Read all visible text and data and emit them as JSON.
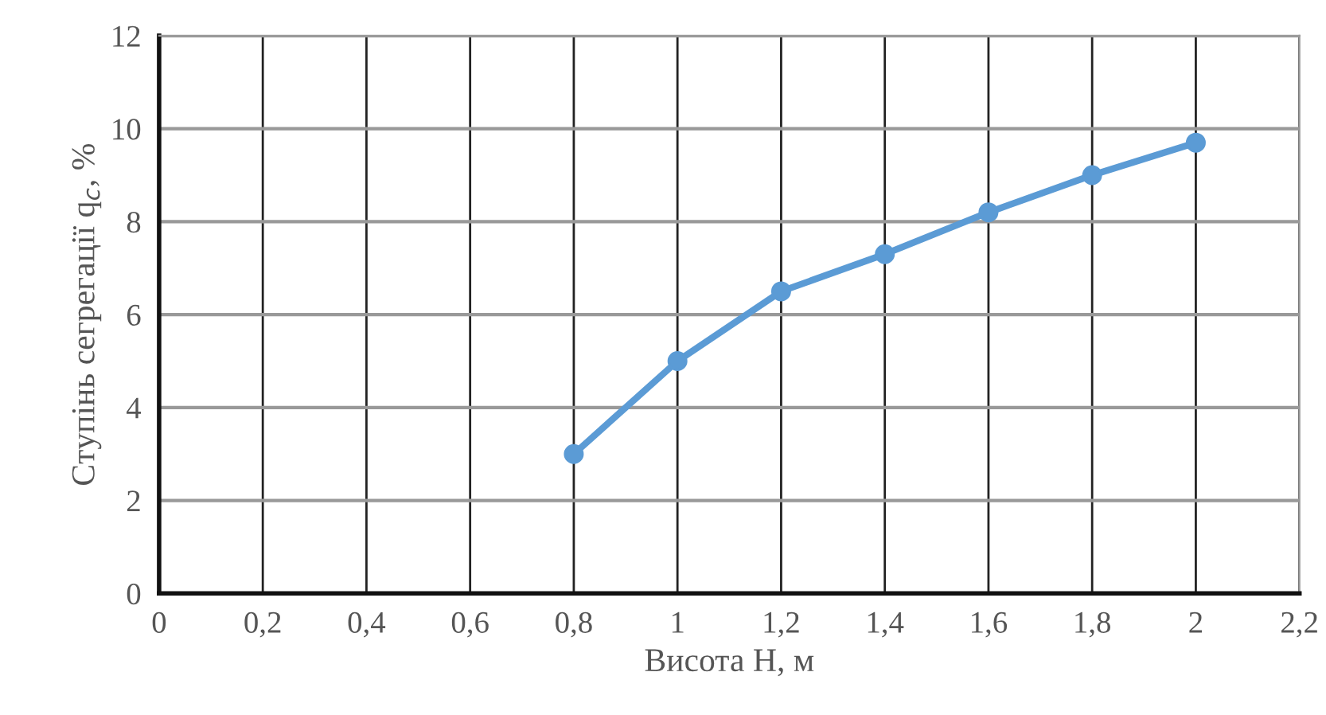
{
  "chart_data": {
    "type": "line",
    "xlabel": "Висота H, м",
    "ylabel": "Ступінь сегрегації q$_{c}$, %",
    "x": [
      0.8,
      1.0,
      1.2,
      1.4,
      1.6,
      1.8,
      2.0
    ],
    "series": [
      {
        "color": "#5b9bd5",
        "values": [
          3.0,
          5.0,
          6.5,
          7.3,
          8.2,
          9.0,
          9.7
        ]
      }
    ],
    "xlim": [
      0,
      2.2
    ],
    "xticks": [
      0,
      {
        "value": 0.2,
        "label": "0,2"
      },
      {
        "value": 0.4,
        "label": "0,4"
      },
      {
        "value": 0.6,
        "label": "0,6"
      },
      {
        "value": 0.8,
        "label": "0,8"
      },
      1,
      {
        "value": 1.2,
        "label": "1,2"
      },
      {
        "value": 1.4,
        "label": "1,4"
      },
      {
        "value": 1.6,
        "label": "1,6"
      },
      {
        "value": 1.8,
        "label": "1,8"
      },
      2,
      {
        "value": 2.2,
        "label": "2,2"
      }
    ],
    "ylim": [
      0,
      12
    ],
    "yticks": [
      0,
      2,
      4,
      6,
      8,
      10,
      12
    ],
    "grid": true,
    "marker": "circle",
    "line_style": "solid"
  }
}
